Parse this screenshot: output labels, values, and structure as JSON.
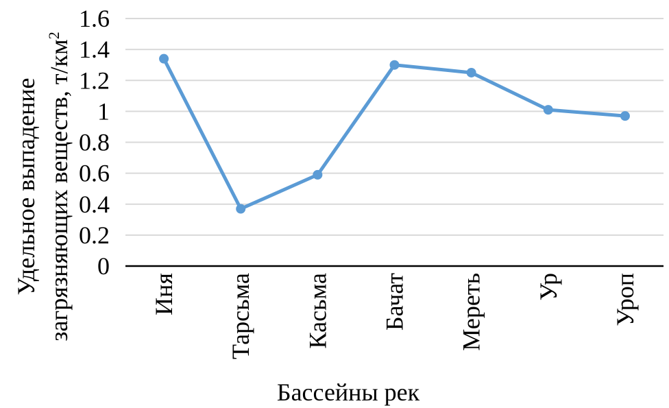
{
  "chart_data": {
    "type": "line",
    "categories": [
      "Иня",
      "Тарсьма",
      "Касьма",
      "Бачат",
      "Мереть",
      "Ур",
      "Уроп"
    ],
    "series": [
      {
        "values": [
          1.34,
          0.37,
          0.59,
          1.3,
          1.25,
          1.01,
          0.97
        ]
      }
    ],
    "ylim": [
      0,
      1.6
    ],
    "yticks": [
      "0",
      "0.2",
      "0.4",
      "0.6",
      "0.8",
      "1",
      "1.2",
      "1.4",
      "1.6"
    ],
    "xlabel": "Бассейны рек",
    "ylabel_line1": "Удельное выпадение",
    "ylabel_line2_main": "загрязняющих веществ, т/км",
    "ylabel_line2_sup": "2",
    "grid": true,
    "colors": {
      "series": "#5b9bd5",
      "grid": "#d9d9d9",
      "axis": "#000000"
    }
  }
}
